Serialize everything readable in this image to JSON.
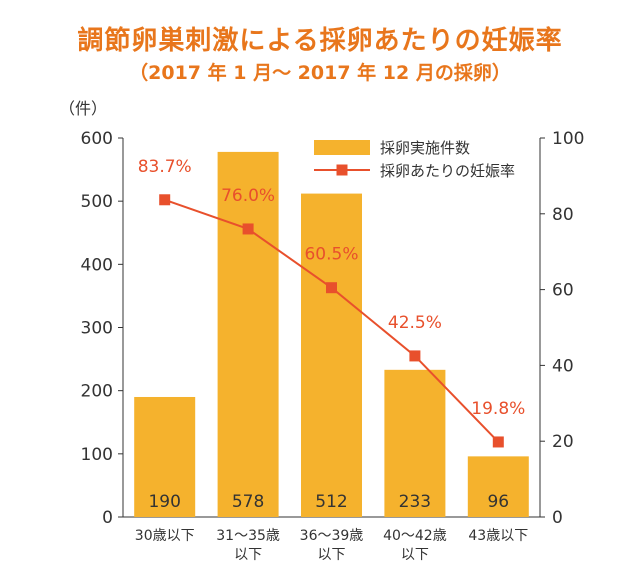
{
  "title": "調節卵巣刺激による採卵あたりの妊娠率",
  "subtitle": "（2017 年 1 月～ 2017 年 12 月の採卵）",
  "chart_data": {
    "type": "bar",
    "categories": [
      [
        "30歳以下"
      ],
      [
        "31～35歳",
        "以下"
      ],
      [
        "36～39歳",
        "以下"
      ],
      [
        "40～42歳",
        "以下"
      ],
      [
        "43歳以下"
      ]
    ],
    "y_left": {
      "unit": "（件）",
      "range": [
        0,
        600
      ],
      "ticks": [
        0,
        100,
        200,
        300,
        400,
        500,
        600
      ]
    },
    "y_right": {
      "range": [
        0,
        100
      ],
      "ticks": [
        0,
        20,
        40,
        60,
        80,
        100
      ]
    },
    "series": [
      {
        "name": "採卵実施件数",
        "type": "bar",
        "axis": "left",
        "values": [
          190,
          578,
          512,
          233,
          96
        ],
        "labels": [
          "190",
          "578",
          "512",
          "233",
          "96"
        ]
      },
      {
        "name": "採卵あたりの妊娠率",
        "type": "line",
        "axis": "right",
        "values": [
          83.7,
          76.0,
          60.5,
          42.5,
          19.8
        ],
        "labels": [
          "83.7%",
          "76.0%",
          "60.5%",
          "42.5%",
          "19.8%"
        ]
      }
    ],
    "colors": {
      "bar": "#f5b22d",
      "line": "#e8502c",
      "label": "#e8502c",
      "title": "#e8761c",
      "axis": "#333333"
    },
    "legend": "top-right",
    "grid": false
  }
}
